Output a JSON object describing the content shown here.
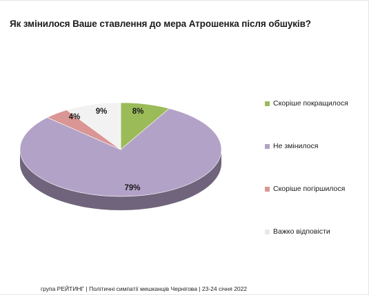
{
  "chart_data": {
    "type": "pie",
    "title": "Як змінилося Ваше ставлення до мера Атрошенка після обшуків?",
    "slices": [
      {
        "label": "Скоріше покращилося",
        "value": 8,
        "value_label": "8%",
        "color": "#9bbb59"
      },
      {
        "label": "Не змінилося",
        "value": 79,
        "value_label": "79%",
        "color": "#b3a2c7"
      },
      {
        "label": "Скоріше погіршилося",
        "value": 4,
        "value_label": "4%",
        "color": "#d99694"
      },
      {
        "label": "Важко відповісти",
        "value": 9,
        "value_label": "9%",
        "color": "#f2f2f2"
      }
    ],
    "legend_position": "right",
    "style": "3d"
  },
  "footer": {
    "text": "група РЕЙТИНГ  | Політичні симпатії мешканців Чернігова | 23-24 січня 2022"
  }
}
